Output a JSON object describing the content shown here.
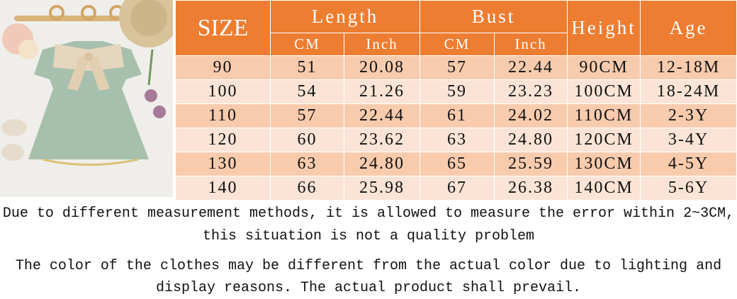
{
  "header": {
    "size": "SIZE",
    "length": "Length",
    "bust": "Bust",
    "height": "Height",
    "age": "Age",
    "cm": "CM",
    "inch": "Inch"
  },
  "colors": {
    "header": "#ed7d31",
    "row_dark": "#f8cbad",
    "row_light": "#fbe4d5"
  },
  "rows": [
    {
      "size": "90",
      "length_cm": "51",
      "length_in": "20.08",
      "bust_cm": "57",
      "bust_in": "22.44",
      "height": "90CM",
      "age": "12-18M"
    },
    {
      "size": "100",
      "length_cm": "54",
      "length_in": "21.26",
      "bust_cm": "59",
      "bust_in": "23.23",
      "height": "100CM",
      "age": "18-24M"
    },
    {
      "size": "110",
      "length_cm": "57",
      "length_in": "22.44",
      "bust_cm": "61",
      "bust_in": "24.02",
      "height": "110CM",
      "age": "2-3Y"
    },
    {
      "size": "120",
      "length_cm": "60",
      "length_in": "23.62",
      "bust_cm": "63",
      "bust_in": "24.80",
      "height": "120CM",
      "age": "3-4Y"
    },
    {
      "size": "130",
      "length_cm": "63",
      "length_in": "24.80",
      "bust_cm": "65",
      "bust_in": "25.59",
      "height": "130CM",
      "age": "4-5Y"
    },
    {
      "size": "140",
      "length_cm": "66",
      "length_in": "25.98",
      "bust_cm": "67",
      "bust_in": "26.38",
      "height": "140CM",
      "age": "5-6Y"
    }
  ],
  "notes": {
    "line1": "Due to different measurement methods, it is allowed to measure the error within 2~3CM,",
    "line2": "this situation is not a quality problem",
    "line3": "The color of the clothes may be different from the actual color due to lighting and",
    "line4": "display reasons. The actual product shall prevail."
  }
}
